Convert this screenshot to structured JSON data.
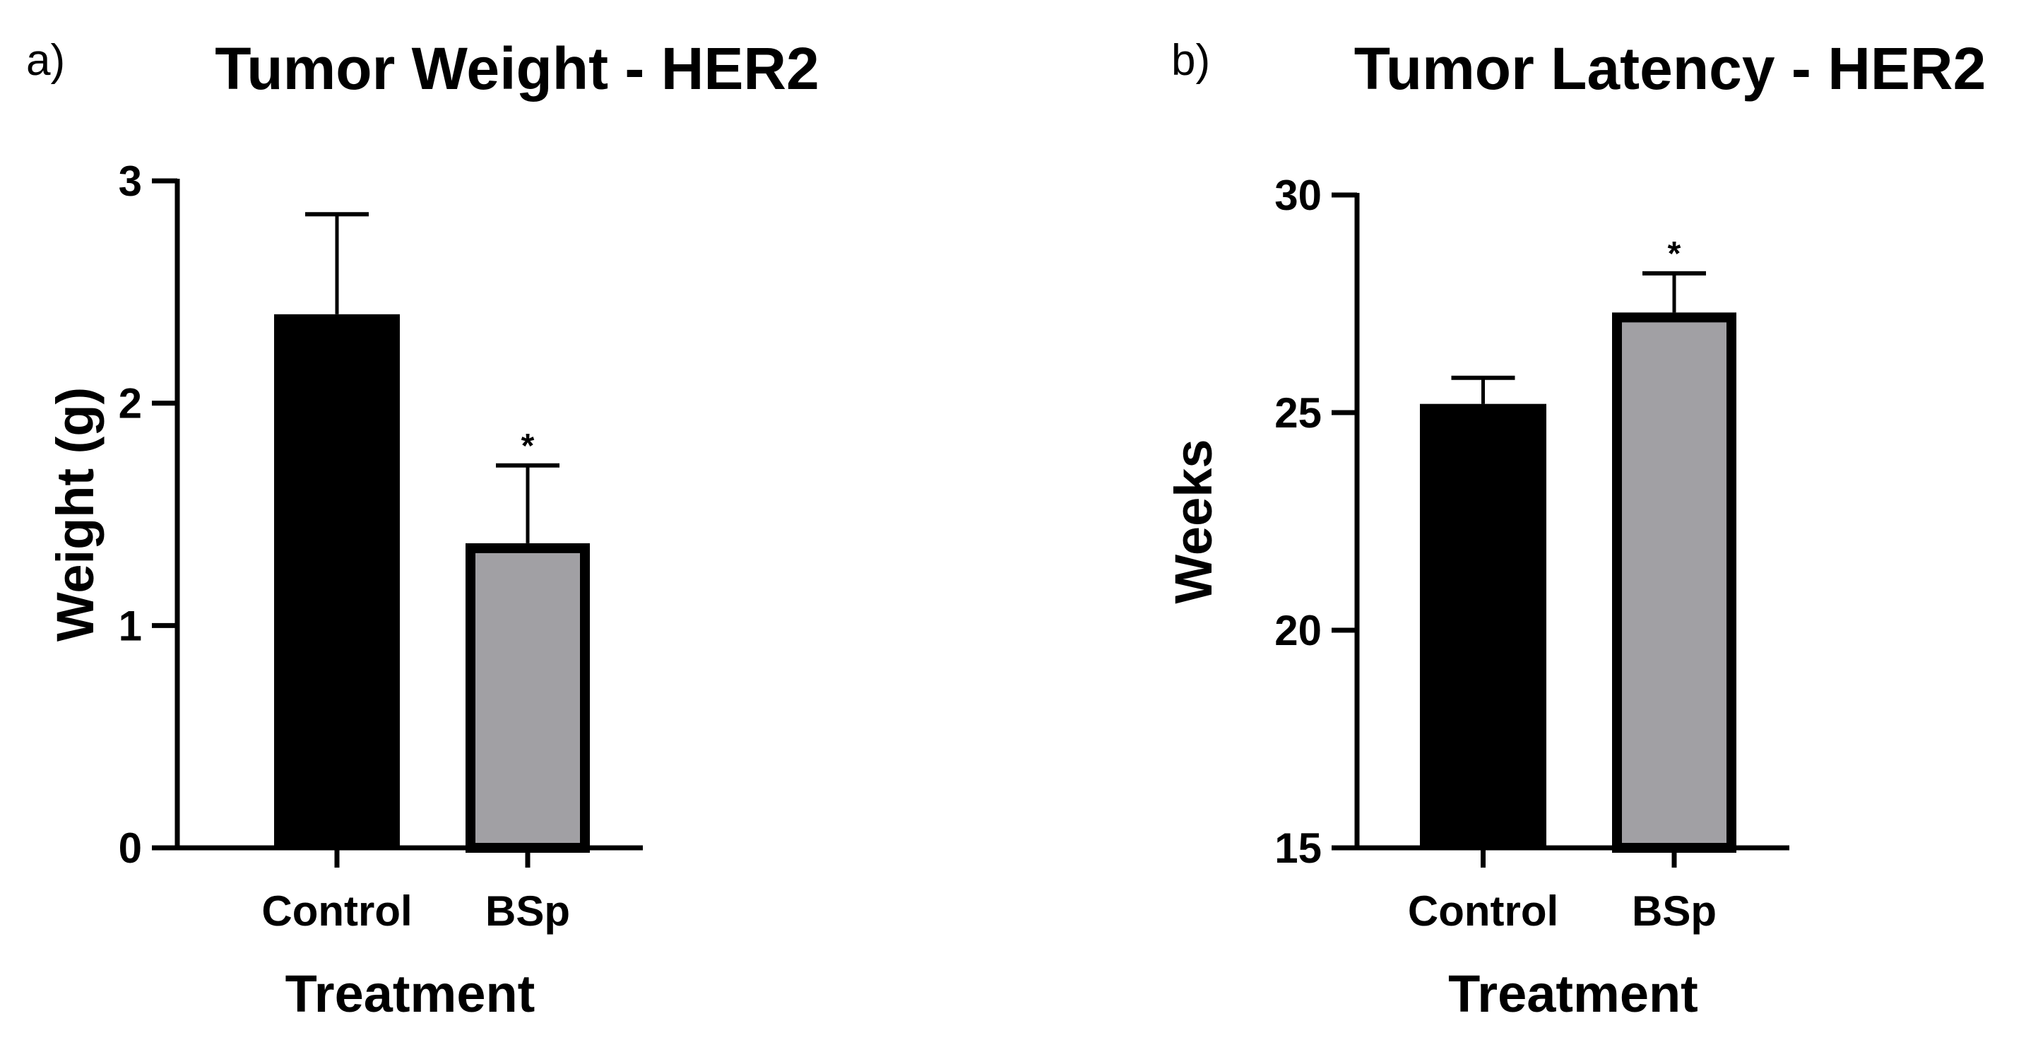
{
  "chart_data": [
    {
      "type": "bar",
      "panel_label": "a)",
      "title": "Tumor Weight - HER2",
      "xlabel": "Treatment",
      "ylabel": "Weight (g)",
      "ylim": [
        0,
        3
      ],
      "yticks": [
        0,
        1,
        2,
        3
      ],
      "categories": [
        "Control",
        "BSp"
      ],
      "values": [
        2.4,
        1.37
      ],
      "error_upper": [
        2.85,
        1.72
      ],
      "significance": [
        "",
        "*"
      ],
      "colors": [
        "#000000",
        "#a1a0a4"
      ],
      "grid": false
    },
    {
      "type": "bar",
      "panel_label": "b)",
      "title": "Tumor Latency - HER2",
      "xlabel": "Treatment",
      "ylabel": "Weeks",
      "ylim": [
        15,
        30
      ],
      "yticks": [
        15,
        20,
        25,
        30
      ],
      "categories": [
        "Control",
        "BSp"
      ],
      "values": [
        25.2,
        27.3
      ],
      "error_upper": [
        25.8,
        28.2
      ],
      "significance": [
        "",
        "*"
      ],
      "colors": [
        "#000000",
        "#a1a0a4"
      ],
      "grid": false
    }
  ]
}
